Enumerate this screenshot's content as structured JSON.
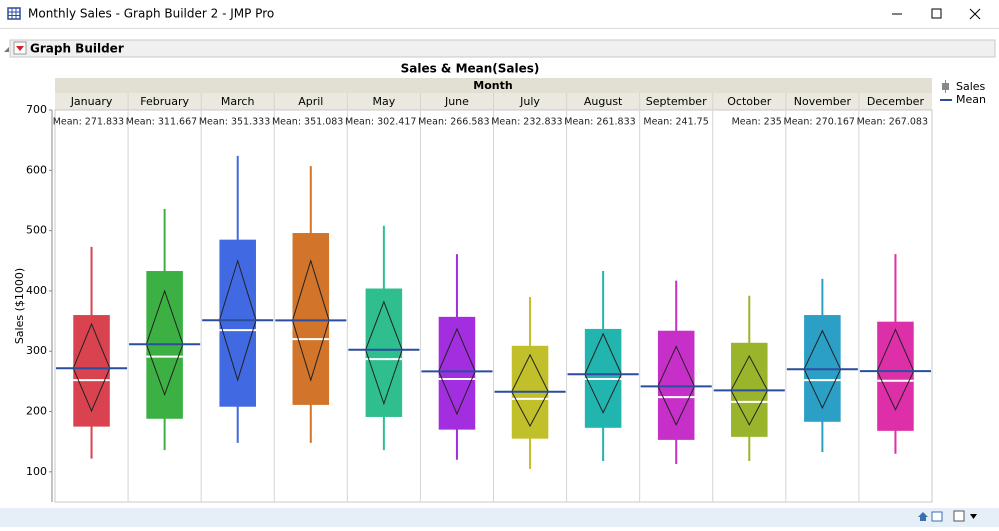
{
  "window": {
    "title": "Monthly Sales - Graph Builder 2 - JMP Pro"
  },
  "outline": {
    "title": "Graph Builder"
  },
  "chart_data": {
    "type": "boxplot",
    "title": "Sales & Mean(Sales)",
    "x_group_label": "Month",
    "y_label": "Sales ($1000)",
    "categories": [
      "January",
      "February",
      "March",
      "April",
      "May",
      "June",
      "July",
      "August",
      "September",
      "October",
      "November",
      "December"
    ],
    "colors": [
      "#d9434f",
      "#3cb043",
      "#4169e1",
      "#d2742a",
      "#2fbf8f",
      "#a32ee0",
      "#c2c02a",
      "#22b5b0",
      "#c630c8",
      "#9ab52c",
      "#2b9fc6",
      "#dd2fa8"
    ],
    "whisker_low": [
      122,
      136,
      148,
      148,
      136,
      120,
      105,
      118,
      113,
      118,
      133,
      130
    ],
    "q1": [
      175,
      188,
      208,
      211,
      191,
      170,
      155,
      173,
      153,
      158,
      183,
      168
    ],
    "median": [
      252,
      291,
      335,
      320,
      287,
      254,
      221,
      254,
      224,
      216,
      252,
      251
    ],
    "q3": [
      360,
      433,
      485,
      496,
      404,
      357,
      309,
      337,
      334,
      314,
      360,
      349
    ],
    "whisker_high": [
      473,
      536,
      624,
      607,
      508,
      461,
      390,
      433,
      417,
      392,
      420,
      461
    ],
    "mean": [
      271.833,
      311.667,
      351.333,
      351.083,
      302.417,
      266.583,
      232.833,
      261.833,
      241.75,
      235,
      270.167,
      267.083
    ],
    "value_labels": [
      "Mean: 271.833",
      "Mean: 311.667",
      "Mean: 351.333",
      "Mean: 351.083",
      "Mean: 302.417",
      "Mean: 266.583",
      "Mean: 232.833",
      "Mean: 261.833",
      "Mean: 241.75",
      "Mean: 235",
      "Mean: 270.167",
      "Mean: 267.083"
    ],
    "ci_upper": [
      345,
      400,
      450,
      450,
      382,
      337,
      294,
      329,
      308,
      292,
      334,
      336
    ],
    "ci_lower": [
      201,
      228,
      252,
      252,
      213,
      196,
      176,
      198,
      178,
      178,
      206,
      203
    ],
    "mean_color": "#2a4d9e",
    "legend": [
      "Sales",
      "Mean"
    ],
    "ylim": [
      50,
      700
    ],
    "yticks": [
      100,
      200,
      300,
      400,
      500,
      600,
      700
    ]
  }
}
